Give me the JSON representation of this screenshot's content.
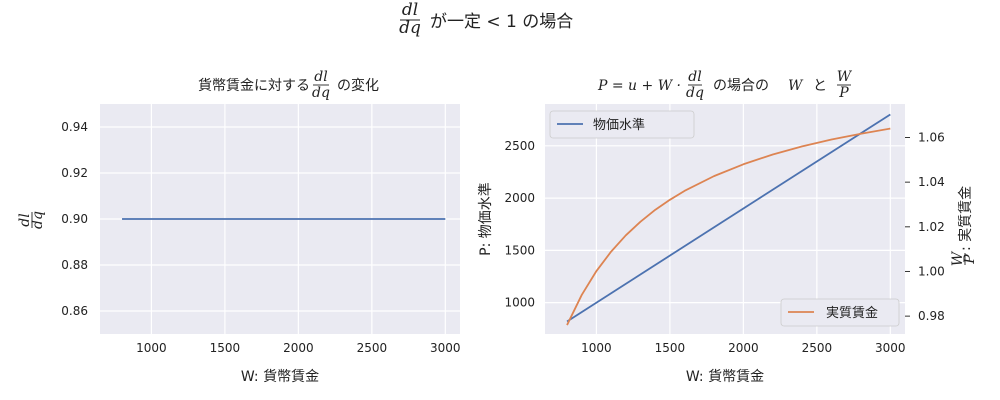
{
  "figure": {
    "title_suffix": "が一定 < 1 の場合",
    "frac_num": "dl",
    "frac_den": "dq"
  },
  "chart_data": [
    {
      "type": "line",
      "title_prefix": "貨幣賃金に対する",
      "title_suffix": "の変化",
      "xlabel": "W: 貨幣賃金",
      "ylabel_frac": [
        "dl",
        "dq"
      ],
      "xlim": [
        650,
        3100
      ],
      "ylim": [
        0.85,
        0.95
      ],
      "xticks": [
        1000,
        1500,
        2000,
        2500,
        3000
      ],
      "yticks": [
        0.86,
        0.88,
        0.9,
        0.92,
        0.94
      ],
      "ytick_labels": [
        "0.86",
        "0.88",
        "0.90",
        "0.92",
        "0.94"
      ],
      "series": [
        {
          "x": [
            800,
            3000
          ],
          "y": [
            0.9,
            0.9
          ],
          "color": "#4c72b0"
        }
      ],
      "grid": true
    },
    {
      "type": "line",
      "title_math": "P = u + W ·",
      "title_mid": "の場合の",
      "title_w": "W",
      "title_and": "と",
      "title_frac": [
        "W",
        "P"
      ],
      "xlabel": "W: 貨幣賃金",
      "ylabel_left": "P: 物価水準",
      "ylabel_right_suffix": ": 実質賃金",
      "xlim": [
        650,
        3100
      ],
      "ylim_left": [
        700,
        2900
      ],
      "ylim_right": [
        0.972,
        1.075
      ],
      "xticks": [
        1000,
        1500,
        2000,
        2500,
        3000
      ],
      "yticks_left": [
        1000,
        1500,
        2000,
        2500
      ],
      "yticks_right": [
        0.98,
        1.0,
        1.02,
        1.04,
        1.06
      ],
      "ytick_right_labels": [
        "0.98",
        "1.00",
        "1.02",
        "1.04",
        "1.06"
      ],
      "legend_left": {
        "label": "物価水準",
        "position": "upper left"
      },
      "legend_right": {
        "label": "実質賃金",
        "position": "lower right"
      },
      "series": [
        {
          "name": "物価水準",
          "axis": "left",
          "color": "#4c72b0",
          "x": [
            800,
            3000
          ],
          "y": [
            820,
            2800
          ]
        },
        {
          "name": "実質賃金",
          "axis": "right",
          "color": "#dd8452",
          "x": [
            800,
            900,
            1000,
            1100,
            1200,
            1300,
            1400,
            1500,
            1600,
            1800,
            2000,
            2200,
            2400,
            2600,
            2800,
            3000
          ],
          "y": [
            0.976,
            0.9895,
            1.0002,
            1.0089,
            1.0162,
            1.0223,
            1.0276,
            1.0321,
            1.0361,
            1.0427,
            1.048,
            1.0524,
            1.056,
            1.0591,
            1.0617,
            1.064
          ]
        }
      ],
      "grid": true
    }
  ]
}
